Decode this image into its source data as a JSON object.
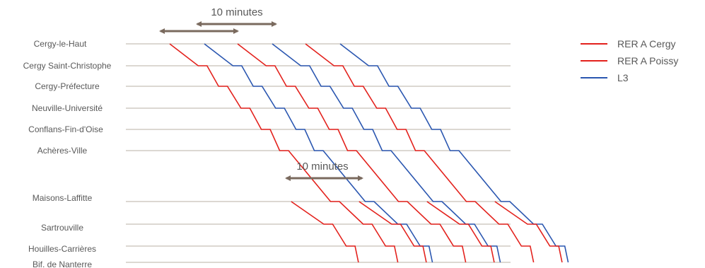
{
  "chart_data": {
    "type": "line",
    "title": "",
    "xlabel": "",
    "ylabel": "",
    "stations": [
      "Cergy-le-Haut",
      "Cergy Saint-Christophe",
      "Cergy-Préfecture",
      "Neuville-Université",
      "Conflans-Fin-d'Oise",
      "Achères-Ville",
      "Maisons-Laffitte",
      "Sartrouville",
      "Houilles-Carrières",
      "Bif. de Nanterre"
    ],
    "legend": [
      {
        "name": "RER A Cergy",
        "color": "#e3211c"
      },
      {
        "name": "RER A Poissy",
        "color": "#e3211c"
      },
      {
        "name": "L3",
        "color": "#2a56b0"
      }
    ],
    "annotations": [
      {
        "text": "10 minutes"
      },
      {
        "text": "10 minutes"
      }
    ],
    "colors": {
      "rer": "#e3211c",
      "l3": "#2a56b0",
      "grid": "#c8c0b8",
      "arrow": "#7a6a5e"
    },
    "series": [
      {
        "line": "RER A Cergy",
        "color": "#e3211c",
        "stations": [
          0,
          1,
          2,
          3,
          4,
          5,
          6,
          7,
          8,
          9
        ],
        "times": [
          0,
          4.2,
          7.2,
          10.5,
          13.5,
          16.2,
          23.7,
          28.5,
          31.8,
          33.6
        ]
      },
      {
        "line": "L3",
        "color": "#2a56b0",
        "stations": [
          0,
          1,
          2,
          3,
          4,
          5,
          6,
          7,
          8,
          9
        ],
        "times": [
          5.1,
          9.3,
          12.3,
          15.6,
          18.6,
          21.3,
          28.8,
          33.6,
          36.9,
          38.7
        ]
      },
      {
        "line": "RER A Cergy",
        "color": "#e3211c",
        "stations": [
          0,
          1,
          2,
          3,
          4,
          5,
          6,
          7,
          8,
          9
        ],
        "times": [
          10.0,
          14.2,
          17.2,
          20.5,
          23.5,
          26.2,
          33.7,
          38.5,
          41.8,
          43.6
        ]
      },
      {
        "line": "L3",
        "color": "#2a56b0",
        "stations": [
          0,
          1,
          2,
          3,
          4,
          5,
          6,
          7,
          8,
          9
        ],
        "times": [
          15.1,
          19.3,
          22.3,
          25.6,
          28.6,
          31.3,
          38.8,
          43.6,
          46.9,
          48.7
        ]
      },
      {
        "line": "RER A Cergy",
        "color": "#e3211c",
        "stations": [
          0,
          1,
          2,
          3,
          4,
          5,
          6,
          7,
          8,
          9
        ],
        "times": [
          20.0,
          24.2,
          27.2,
          30.5,
          33.5,
          36.2,
          43.7,
          48.5,
          51.8,
          53.6
        ]
      },
      {
        "line": "L3",
        "color": "#2a56b0",
        "stations": [
          0,
          1,
          2,
          3,
          4,
          5,
          6,
          7,
          8,
          9
        ],
        "times": [
          25.1,
          29.3,
          32.3,
          35.6,
          38.6,
          41.3,
          48.8,
          53.6,
          56.9,
          58.7
        ]
      },
      {
        "line": "RER A Poissy",
        "color": "#e3211c",
        "stations": [
          6,
          7,
          8,
          9
        ],
        "times": [
          17.9,
          22.7,
          26.0,
          27.8
        ]
      },
      {
        "line": "RER A Poissy",
        "color": "#e3211c",
        "stations": [
          6,
          7,
          8,
          9
        ],
        "times": [
          27.9,
          32.7,
          36.0,
          37.8
        ]
      },
      {
        "line": "RER A Poissy",
        "color": "#e3211c",
        "stations": [
          6,
          7,
          8,
          9
        ],
        "times": [
          37.9,
          42.7,
          46.0,
          47.8
        ]
      },
      {
        "line": "RER A Poissy",
        "color": "#e3211c",
        "stations": [
          6,
          7,
          8,
          9
        ],
        "times": [
          47.9,
          52.7,
          56.0,
          57.8
        ]
      }
    ]
  }
}
